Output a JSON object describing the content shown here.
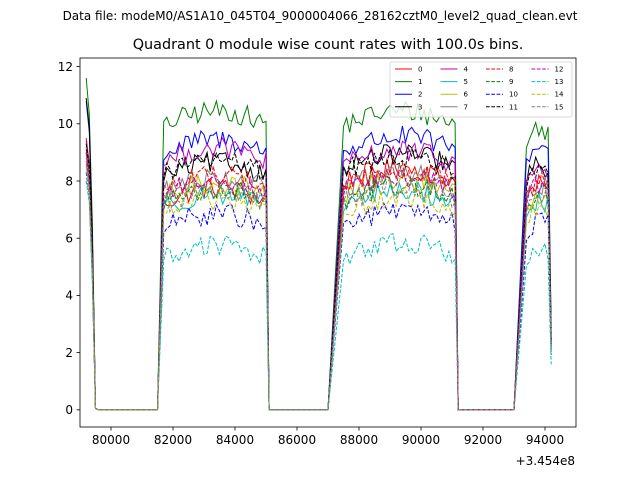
{
  "figure": {
    "suptitle": "Data file: modeM0/AS1A10_045T04_9000004066_28162cztM0_level2_quad_clean.evt"
  },
  "chart_data": {
    "type": "line",
    "title": "Quadrant 0 module wise count rates with 100.0s bins.",
    "xlabel": "",
    "ylabel": "",
    "x_offset_label": "+3.454e8",
    "xlim": [
      79000,
      95000
    ],
    "ylim": [
      -0.6,
      12.3
    ],
    "x_ticks": [
      80000,
      82000,
      84000,
      86000,
      88000,
      90000,
      92000,
      94000
    ],
    "x_tick_labels": [
      "80000",
      "82000",
      "84000",
      "86000",
      "88000",
      "90000",
      "92000",
      "94000"
    ],
    "y_ticks": [
      0,
      2,
      4,
      6,
      8,
      10,
      12
    ],
    "y_tick_labels": [
      "0",
      "2",
      "4",
      "6",
      "8",
      "10",
      "12"
    ],
    "grid": false,
    "legend": {
      "placement": "top-right",
      "columns": 4
    },
    "segments": [
      {
        "start": 79200,
        "bins": 4,
        "pre_zero": null
      },
      {
        "start": 81700,
        "bins": 34,
        "pre_zero": 81600
      },
      {
        "start": 87500,
        "bins": 37,
        "pre_zero": 87400
      },
      {
        "start": 93400,
        "bins": 9,
        "pre_zero": 93300
      }
    ],
    "gaps_zero_x": [
      [
        79600,
        79700,
        79800,
        79900,
        80000,
        80500,
        81000,
        81500
      ],
      [
        85100,
        85200,
        85500,
        86000,
        86500,
        87000
      ],
      [
        91200,
        91300,
        91500,
        92000,
        92500,
        93000
      ]
    ],
    "series": [
      {
        "name": "0",
        "color": "#ff0000",
        "dash": "solid",
        "start": 9.5,
        "means": [
          7.5,
          8.2,
          7.6
        ]
      },
      {
        "name": "1",
        "color": "#008000",
        "dash": "solid",
        "start": 11.6,
        "means": [
          10.2,
          10.2,
          9.6
        ]
      },
      {
        "name": "2",
        "color": "#0000ff",
        "dash": "solid",
        "start": 10.8,
        "means": [
          9.2,
          9.3,
          9.0
        ]
      },
      {
        "name": "3",
        "color": "#000000",
        "dash": "solid",
        "start": 10.9,
        "means": [
          8.4,
          8.7,
          8.3
        ]
      },
      {
        "name": "4",
        "color": "#bf00bf",
        "dash": "solid",
        "start": 9.4,
        "means": [
          8.9,
          8.8,
          8.2
        ]
      },
      {
        "name": "5",
        "color": "#00bfbf",
        "dash": "solid",
        "start": 9.2,
        "means": [
          7.3,
          7.4,
          7.1
        ]
      },
      {
        "name": "6",
        "color": "#bfbf00",
        "dash": "solid",
        "start": 8.9,
        "means": [
          7.7,
          7.8,
          7.3
        ]
      },
      {
        "name": "7",
        "color": "#808080",
        "dash": "solid",
        "start": 8.7,
        "means": [
          7.9,
          8.0,
          7.6
        ]
      },
      {
        "name": "8",
        "color": "#ff0000",
        "dash": "dashed",
        "start": 9.1,
        "means": [
          8.0,
          8.1,
          7.7
        ]
      },
      {
        "name": "9",
        "color": "#008000",
        "dash": "dashed",
        "start": 9.0,
        "means": [
          7.5,
          7.6,
          7.3
        ]
      },
      {
        "name": "10",
        "color": "#0000ff",
        "dash": "dashed",
        "start": 8.3,
        "means": [
          6.6,
          6.7,
          6.4
        ]
      },
      {
        "name": "11",
        "color": "#000000",
        "dash": "dashed",
        "start": 9.3,
        "means": [
          8.5,
          8.6,
          8.0
        ]
      },
      {
        "name": "12",
        "color": "#bf00bf",
        "dash": "dashed",
        "start": 9.0,
        "means": [
          7.8,
          7.9,
          7.6
        ]
      },
      {
        "name": "13",
        "color": "#00bfbf",
        "dash": "dashed",
        "start": 8.0,
        "means": [
          5.5,
          5.6,
          5.3
        ]
      },
      {
        "name": "14",
        "color": "#bfbf00",
        "dash": "dashed",
        "start": 8.5,
        "means": [
          7.1,
          7.2,
          6.9
        ]
      },
      {
        "name": "15",
        "color": "#808080",
        "dash": "dashed",
        "start": 8.6,
        "means": [
          7.4,
          7.5,
          7.1
        ]
      }
    ]
  }
}
